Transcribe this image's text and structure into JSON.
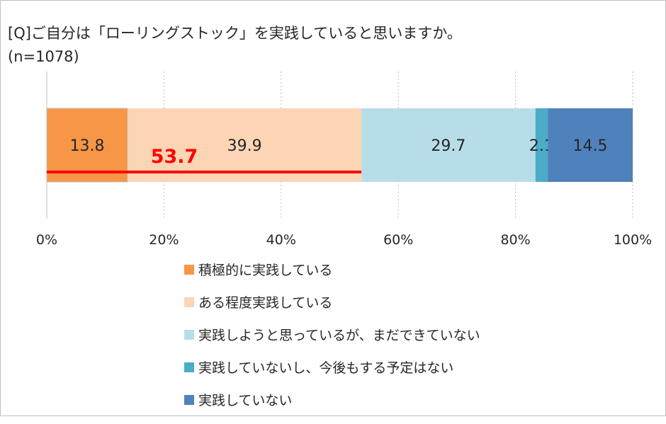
{
  "chart_data": {
    "type": "bar",
    "orientation": "horizontal-stacked",
    "title": "[Q]ご自分は「ローリングストック」を実践していると思いますか。",
    "subtitle": "(n=1078)",
    "series": [
      {
        "name": "積極的に実践している",
        "value": 13.8,
        "color": "#f79646"
      },
      {
        "name": "ある程度実践している",
        "value": 39.9,
        "color": "#fcd5b5"
      },
      {
        "name": "実践しようと思っているが、まだできていない",
        "value": 29.7,
        "color": "#b7dde8"
      },
      {
        "name": "実践していないし、今後もする予定はない",
        "value": 2.1,
        "color": "#4bacc6"
      },
      {
        "name": "実践していない",
        "value": 14.5,
        "color": "#4f81bd"
      }
    ],
    "xlim": [
      0,
      100
    ],
    "xticks": [
      0,
      20,
      40,
      60,
      80,
      100
    ],
    "xtick_labels": [
      "0%",
      "20%",
      "40%",
      "60%",
      "80%",
      "100%"
    ],
    "grid": true,
    "annotation": {
      "label": "53.7",
      "from": 0,
      "to": 53.7,
      "color": "#ff0000"
    },
    "legend_position": "bottom"
  }
}
